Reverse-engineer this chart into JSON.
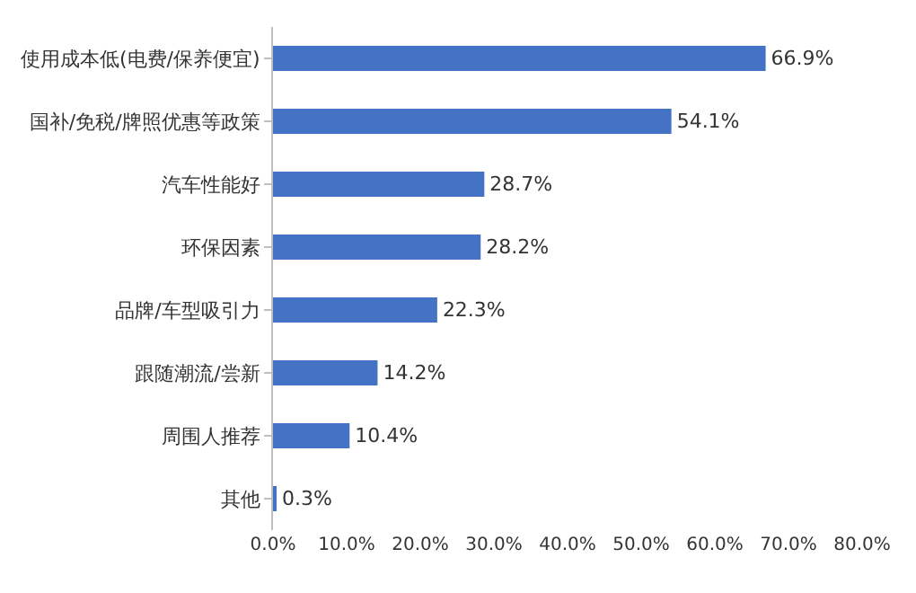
{
  "chart_data": {
    "type": "bar",
    "orientation": "horizontal",
    "categories": [
      "使用成本低(电费/保养便宜)",
      "国补/免税/牌照优惠等政策",
      "汽车性能好",
      "环保因素",
      "品牌/车型吸引力",
      "跟随潮流/尝新",
      "周围人推荐",
      "其他"
    ],
    "values": [
      66.9,
      54.1,
      28.7,
      28.2,
      22.3,
      14.2,
      10.4,
      0.3
    ],
    "value_labels": [
      "66.9%",
      "54.1%",
      "28.7%",
      "28.2%",
      "22.3%",
      "14.2%",
      "10.4%",
      "0.3%"
    ],
    "color": "#4472c4",
    "xlim": [
      0,
      80
    ],
    "xticks": [
      {
        "value": 0,
        "label": "0.0%"
      },
      {
        "value": 10,
        "label": "10.0%"
      },
      {
        "value": 20,
        "label": "20.0%"
      },
      {
        "value": 30,
        "label": "30.0%"
      },
      {
        "value": 40,
        "label": "40.0%"
      },
      {
        "value": 50,
        "label": "50.0%"
      },
      {
        "value": 60,
        "label": "60.0%"
      },
      {
        "value": 70,
        "label": "70.0%"
      },
      {
        "value": 80,
        "label": "80.0%"
      }
    ],
    "tick_labels": "xy"
  }
}
